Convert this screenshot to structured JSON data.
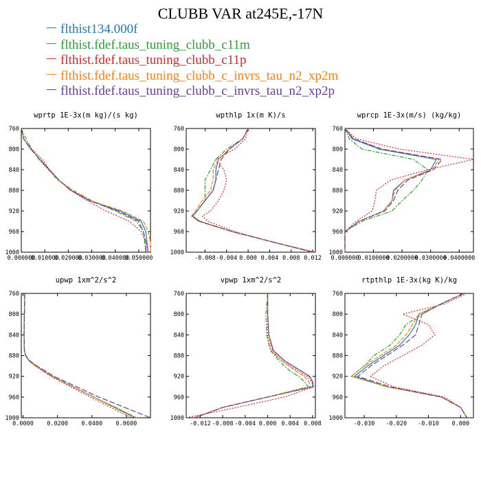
{
  "title": "CLUBB VAR at245E,-17N",
  "series": [
    {
      "name": "flthist134.000f",
      "color": "#1f77b4",
      "dash": ""
    },
    {
      "name": "flthist.fdef.taus_tuning_clubb_c11m",
      "color": "#2ca02c",
      "dash": "6,2,2,2"
    },
    {
      "name": "flthist.fdef.taus_tuning_clubb_c11p",
      "color": "#d62728",
      "dash": "2,2"
    },
    {
      "name": "flthist.fdef.taus_tuning_clubb_c_invrs_tau_n2_xp2m",
      "color": "#ff7f0e",
      "dash": "6,2"
    },
    {
      "name": "flthist.fdef.taus_tuning_clubb_c_invrs_tau_n2_xp2p",
      "color": "#6a3d9a",
      "dash": "8,3"
    }
  ],
  "chart_data": [
    {
      "type": "line",
      "title": "wprtp  1E-3x(m kg)/(s kg)",
      "y": [
        760,
        780,
        800,
        820,
        840,
        860,
        880,
        900,
        920,
        940,
        960,
        980,
        1000
      ],
      "ylim": [
        1000,
        760
      ],
      "yticks": [
        760,
        800,
        840,
        880,
        920,
        960,
        1000
      ],
      "xlim": [
        0,
        0.055
      ],
      "xticks": [
        0,
        0.01,
        0.02,
        0.03,
        0.04,
        0.05
      ],
      "xticklabels": [
        "0.000000",
        "0.010000",
        "0.020000",
        "0.030000",
        "0.040000",
        "0.050000"
      ],
      "series": [
        {
          "values": [
            0.0,
            0.001,
            0.004,
            0.008,
            0.012,
            0.016,
            0.021,
            0.029,
            0.042,
            0.051,
            0.053,
            0.0535,
            0.054
          ]
        },
        {
          "values": [
            0.0,
            0.002,
            0.0045,
            0.0075,
            0.0115,
            0.0155,
            0.022,
            0.03,
            0.04,
            0.049,
            0.052,
            0.0525,
            0.053
          ]
        },
        {
          "values": [
            0.0,
            0.001,
            0.0045,
            0.009,
            0.012,
            0.016,
            0.021,
            0.028,
            0.036,
            0.046,
            0.051,
            0.053,
            0.054
          ]
        },
        {
          "values": [
            0.0,
            0.001,
            0.004,
            0.008,
            0.0115,
            0.016,
            0.0215,
            0.0295,
            0.043,
            0.052,
            0.054,
            0.055,
            0.055
          ]
        },
        {
          "values": [
            0.0,
            0.001,
            0.004,
            0.008,
            0.012,
            0.016,
            0.021,
            0.029,
            0.041,
            0.05,
            0.052,
            0.053,
            0.053
          ]
        }
      ]
    },
    {
      "type": "line",
      "title": "wpthlp  1x(m K)/s",
      "y": [
        760,
        780,
        800,
        820,
        840,
        860,
        880,
        900,
        920,
        930,
        940,
        960,
        980,
        1000
      ],
      "ylim": [
        1000,
        760
      ],
      "yticks": [
        760,
        800,
        840,
        880,
        920,
        960,
        1000
      ],
      "xlim": [
        -0.0115,
        0.0125
      ],
      "xticks": [
        -0.008,
        -0.004,
        0.0,
        0.004,
        0.008,
        0.012
      ],
      "xticklabels": [
        "-0.008",
        "-0.004",
        "0.000",
        "0.004",
        "0.008",
        "0.012"
      ],
      "series": [
        {
          "values": [
            0.0,
            -0.001,
            -0.0035,
            -0.0055,
            -0.006,
            -0.006,
            -0.0065,
            -0.008,
            -0.0095,
            -0.0103,
            -0.009,
            -0.003,
            0.0045,
            0.012
          ]
        },
        {
          "values": [
            0.0,
            -0.001,
            -0.004,
            -0.006,
            -0.007,
            -0.008,
            -0.008,
            -0.008,
            -0.0095,
            -0.0105,
            -0.0092,
            -0.003,
            0.0045,
            0.012
          ]
        },
        {
          "values": [
            0.0,
            -0.0005,
            -0.0025,
            -0.006,
            -0.0045,
            -0.004,
            -0.0045,
            -0.0055,
            -0.007,
            -0.0085,
            -0.0075,
            -0.0025,
            0.0045,
            0.0125
          ]
        },
        {
          "values": [
            0.0,
            -0.001,
            -0.0035,
            -0.0055,
            -0.0065,
            -0.0065,
            -0.007,
            -0.0085,
            -0.0098,
            -0.0105,
            -0.0092,
            -0.003,
            0.0045,
            0.012
          ]
        },
        {
          "values": [
            0.0,
            -0.001,
            -0.0035,
            -0.005,
            -0.0055,
            -0.006,
            -0.0065,
            -0.008,
            -0.0095,
            -0.0103,
            -0.009,
            -0.003,
            0.0045,
            0.012
          ]
        }
      ]
    },
    {
      "type": "line",
      "title": "wprcp  1E-3x(m/s) (kg/kg)",
      "y": [
        760,
        780,
        800,
        820,
        840,
        860,
        880,
        900,
        920,
        940,
        960,
        980,
        1000
      ],
      "ylim": [
        1000,
        760
      ],
      "yticks": [
        760,
        800,
        840,
        880,
        920,
        960,
        1000
      ],
      "xlim": [
        0,
        0.045
      ],
      "xticks": [
        0,
        0.01,
        0.02,
        0.03,
        0.04
      ],
      "xticklabels": [
        "0.000000",
        "0.0100000",
        "0.0200000",
        "0.0300000",
        "0.0400000"
      ],
      "series": [
        {
          "values": [
            0.0,
            0.0025,
            0.012,
            0.032,
            0.03,
            0.021,
            0.017,
            0.0165,
            0.0135,
            0.005,
            0.0,
            0.0,
            0.0
          ]
        },
        {
          "values": [
            0.0,
            0.0015,
            0.006,
            0.024,
            0.029,
            0.027,
            0.024,
            0.02,
            0.0165,
            0.006,
            0.0,
            0.0,
            0.0
          ]
        },
        {
          "values": [
            0.0,
            0.004,
            0.019,
            0.045,
            0.029,
            0.016,
            0.011,
            0.0105,
            0.0095,
            0.004,
            0.0,
            0.0,
            0.0
          ]
        },
        {
          "values": [
            0.0,
            0.003,
            0.013,
            0.033,
            0.0305,
            0.021,
            0.0175,
            0.0165,
            0.0135,
            0.005,
            0.0,
            0.0,
            0.0
          ]
        },
        {
          "values": [
            0.0,
            0.003,
            0.013,
            0.034,
            0.031,
            0.022,
            0.0185,
            0.017,
            0.014,
            0.005,
            0.0,
            0.0,
            0.0
          ]
        }
      ]
    },
    {
      "type": "line",
      "title": "upwp  1xm^2/s^2",
      "y": [
        760,
        800,
        840,
        870,
        880,
        890,
        900,
        920,
        940,
        960,
        980,
        1000
      ],
      "ylim": [
        1000,
        760
      ],
      "yticks": [
        760,
        800,
        840,
        880,
        920,
        960,
        1000
      ],
      "xlim": [
        -0.001,
        0.074
      ],
      "xticks": [
        0.0,
        0.02,
        0.04,
        0.06
      ],
      "xticklabels": [
        "0.0000",
        "0.0200",
        "0.0400",
        "0.0600"
      ],
      "series": [
        {
          "values": [
            0.001,
            0.0008,
            0.0006,
            0.0008,
            0.0015,
            0.0035,
            0.0075,
            0.017,
            0.029,
            0.041,
            0.053,
            0.065
          ]
        },
        {
          "values": [
            0.001,
            0.0008,
            0.0006,
            0.0008,
            0.0016,
            0.0038,
            0.008,
            0.017,
            0.029,
            0.041,
            0.053,
            0.066
          ]
        },
        {
          "values": [
            0.001,
            0.0008,
            0.0006,
            0.0008,
            0.0014,
            0.0033,
            0.007,
            0.016,
            0.0275,
            0.039,
            0.051,
            0.063
          ]
        },
        {
          "values": [
            0.001,
            0.0008,
            0.0006,
            0.0008,
            0.0015,
            0.0035,
            0.0075,
            0.017,
            0.029,
            0.041,
            0.054,
            0.066
          ]
        },
        {
          "values": [
            0.001,
            0.0008,
            0.0006,
            0.0008,
            0.0016,
            0.0038,
            0.008,
            0.018,
            0.031,
            0.044,
            0.059,
            0.074
          ]
        }
      ]
    },
    {
      "type": "line",
      "title": "vpwp  1xm^2/s^2",
      "y": [
        760,
        800,
        840,
        870,
        890,
        910,
        920,
        930,
        940,
        960,
        980,
        1000
      ],
      "ylim": [
        1000,
        760
      ],
      "yticks": [
        760,
        800,
        840,
        880,
        920,
        960,
        1000
      ],
      "xlim": [
        -0.0145,
        0.0085
      ],
      "xticks": [
        -0.012,
        -0.008,
        -0.004,
        0.0,
        0.004,
        0.008
      ],
      "xticklabels": [
        "-0.012",
        "-0.008",
        "-0.004",
        "0.000",
        "0.004",
        "0.008"
      ],
      "series": [
        {
          "values": [
            0.0,
            0.0,
            0.0002,
            0.001,
            0.003,
            0.006,
            0.0075,
            0.008,
            0.008,
            0.0,
            -0.008,
            -0.013
          ]
        },
        {
          "values": [
            0.0,
            -0.0003,
            -0.0002,
            0.0005,
            0.002,
            0.004,
            0.0055,
            0.0065,
            0.0072,
            0.0,
            -0.008,
            -0.013
          ]
        },
        {
          "values": [
            0.0,
            0.0,
            0.0,
            0.0005,
            0.0025,
            0.0055,
            0.007,
            0.0078,
            0.0082,
            0.003,
            -0.0055,
            -0.0145
          ]
        },
        {
          "values": [
            0.0,
            0.0,
            0.0002,
            0.0008,
            0.0025,
            0.005,
            0.0065,
            0.0073,
            0.0076,
            0.0,
            -0.008,
            -0.013
          ]
        },
        {
          "values": [
            0.0,
            0.0,
            0.0002,
            0.001,
            0.003,
            0.006,
            0.0074,
            0.008,
            0.0082,
            0.0,
            -0.008,
            -0.013
          ]
        }
      ]
    },
    {
      "type": "line",
      "title": "rtpthlp  1E-3x(kg K)/kg",
      "y": [
        760,
        780,
        800,
        820,
        840,
        860,
        880,
        900,
        920,
        940,
        960,
        980,
        1000
      ],
      "ylim": [
        1000,
        760
      ],
      "yticks": [
        760,
        800,
        840,
        880,
        920,
        960,
        1000
      ],
      "xlim": [
        -0.036,
        0.004
      ],
      "xticks": [
        -0.03,
        -0.02,
        -0.01,
        0.0
      ],
      "xticklabels": [
        "-0.030",
        "-0.020",
        "-0.010",
        "0.000"
      ],
      "series": [
        {
          "values": [
            0.001,
            -0.006,
            -0.013,
            -0.014,
            -0.016,
            -0.019,
            -0.024,
            -0.029,
            -0.033,
            -0.023,
            -0.006,
            0.0,
            0.002
          ]
        },
        {
          "values": [
            0.001,
            -0.006,
            -0.012,
            -0.017,
            -0.019,
            -0.022,
            -0.027,
            -0.03,
            -0.034,
            -0.023,
            -0.006,
            0.0,
            0.002
          ]
        },
        {
          "values": [
            0.002,
            -0.005,
            -0.018,
            -0.01,
            -0.008,
            -0.012,
            -0.018,
            -0.024,
            -0.028,
            -0.021,
            -0.005,
            0.0,
            0.002
          ]
        },
        {
          "values": [
            0.001,
            -0.006,
            -0.013,
            -0.015,
            -0.017,
            -0.02,
            -0.025,
            -0.03,
            -0.034,
            -0.023,
            -0.006,
            0.0,
            0.002
          ]
        },
        {
          "values": [
            0.001,
            -0.006,
            -0.012,
            -0.013,
            -0.014,
            -0.018,
            -0.023,
            -0.028,
            -0.032,
            -0.022,
            -0.006,
            0.0,
            0.002
          ]
        }
      ]
    }
  ]
}
